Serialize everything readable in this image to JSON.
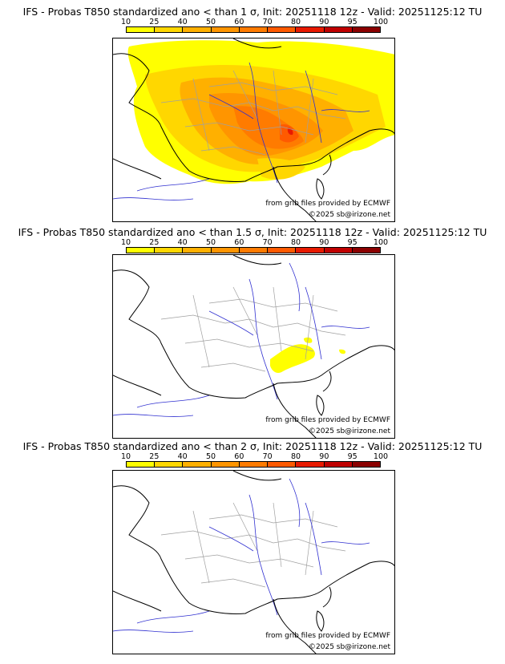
{
  "legend": {
    "ticks": [
      "10",
      "25",
      "40",
      "50",
      "60",
      "70",
      "80",
      "90",
      "95",
      "100"
    ],
    "colors": [
      "#ffff00",
      "#ffd700",
      "#ffb000",
      "#ff9500",
      "#ff7b00",
      "#ff5a00",
      "#e81a00",
      "#c00000",
      "#8b0000"
    ]
  },
  "panels": [
    {
      "title": "IFS - Probas T850  standardized ano < than 1 σ, Init: 20251118 12z - Valid: 20251125:12 TU",
      "source": "from grib files provided by ECMWF",
      "copyright": "©2025 sb@irizone.net",
      "anomaly_probability_max": "70-80"
    },
    {
      "title": "IFS - Probas T850  standardized ano < than 1.5 σ, Init: 20251118 12z - Valid: 20251125:12 TU",
      "source": "from grib files provided by ECMWF",
      "copyright": "©2025 sb@irizone.net",
      "anomaly_probability_max": "10-25"
    },
    {
      "title": "IFS - Probas T850  standardized ano < than 2 σ, Init: 20251118 12z - Valid: 20251125:12 TU",
      "source": "from grib files provided by ECMWF",
      "copyright": "©2025 sb@irizone.net",
      "anomaly_probability_max": "<10"
    }
  ],
  "colors": {
    "coast": "#000000",
    "borders": "#a0a0a0",
    "rivers": "#3030d0"
  }
}
